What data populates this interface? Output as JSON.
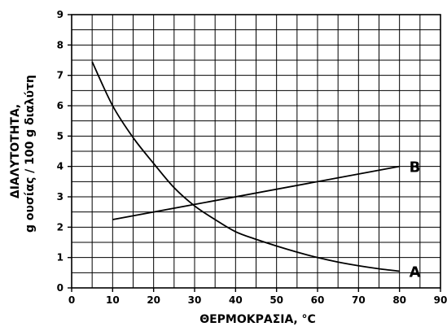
{
  "chart_data": {
    "type": "line",
    "title": "",
    "xlabel": "ΘΕΡΜΟΚΡΑΣΙΑ, °C",
    "ylabel_lines": [
      "ΔΙΑΛΥΤΟΤΗΤΑ,",
      "g ουσίας / 100 g διαλύτη"
    ],
    "xlim": [
      0,
      90
    ],
    "ylim": [
      0,
      9
    ],
    "x_ticks": [
      0,
      10,
      20,
      30,
      40,
      50,
      60,
      70,
      80,
      90
    ],
    "y_ticks": [
      0,
      1,
      2,
      3,
      4,
      5,
      6,
      7,
      8,
      9
    ],
    "grid": true,
    "series": [
      {
        "name": "A",
        "x": [
          5,
          10,
          15,
          20,
          25,
          30,
          35,
          40,
          45,
          50,
          55,
          60,
          65,
          70,
          75,
          80
        ],
        "y": [
          7.45,
          6.0,
          4.95,
          4.1,
          3.3,
          2.7,
          2.25,
          1.85,
          1.6,
          1.38,
          1.18,
          1.0,
          0.85,
          0.73,
          0.63,
          0.55
        ]
      },
      {
        "name": "B",
        "x": [
          10,
          80
        ],
        "y": [
          2.25,
          4.0
        ]
      }
    ]
  }
}
